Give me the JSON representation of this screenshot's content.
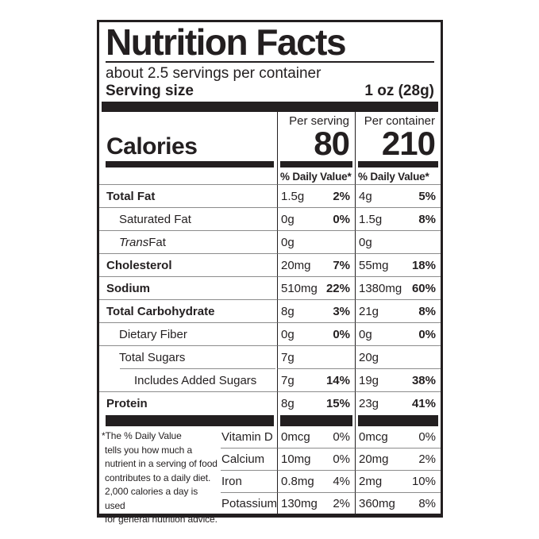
{
  "colors": {
    "ink": "#231f20",
    "hairline": "#8c8c8c",
    "background": "#ffffff"
  },
  "header": {
    "title": "Nutrition Facts",
    "servings_per_container": "about 2.5 servings per container",
    "serving_size_label": "Serving size",
    "serving_size_value": "1 oz (28g)"
  },
  "calories": {
    "label": "Calories",
    "serving_column_header": "Per serving",
    "container_column_header": "Per container",
    "per_serving": "80",
    "per_container": "210",
    "daily_value_header_serving": "% Daily Value*",
    "daily_value_header_container": "% Daily Value*"
  },
  "nutrients": [
    {
      "label": "Total Fat",
      "serving_amount": "1.5g",
      "serving_dv": "2%",
      "container_amount": "4g",
      "container_dv": "5%"
    },
    {
      "label": "Saturated Fat",
      "serving_amount": "0g",
      "serving_dv": "0%",
      "container_amount": "1.5g",
      "container_dv": "8%"
    },
    {
      "label_italic": "Trans",
      "label_rest": " Fat",
      "serving_amount": "0g",
      "serving_dv": "",
      "container_amount": "0g",
      "container_dv": ""
    },
    {
      "label": "Cholesterol",
      "serving_amount": "20mg",
      "serving_dv": "7%",
      "container_amount": "55mg",
      "container_dv": "18%"
    },
    {
      "label": "Sodium",
      "serving_amount": "510mg",
      "serving_dv": "22%",
      "container_amount": "1380mg",
      "container_dv": "60%"
    },
    {
      "label": "Total Carbohydrate",
      "serving_amount": "8g",
      "serving_dv": "3%",
      "container_amount": "21g",
      "container_dv": "8%"
    },
    {
      "label": "Dietary Fiber",
      "serving_amount": "0g",
      "serving_dv": "0%",
      "container_amount": "0g",
      "container_dv": "0%"
    },
    {
      "label": "Total Sugars",
      "serving_amount": "7g",
      "serving_dv": "",
      "container_amount": "20g",
      "container_dv": ""
    },
    {
      "label": "Includes Added Sugars",
      "serving_amount": "7g",
      "serving_dv": "14%",
      "container_amount": "19g",
      "container_dv": "38%"
    },
    {
      "label": "Protein",
      "serving_amount": "8g",
      "serving_dv": "15%",
      "container_amount": "23g",
      "container_dv": "41%"
    }
  ],
  "vitamins": [
    {
      "label": "Vitamin D",
      "serving_amount": "0mcg",
      "serving_dv": "0%",
      "container_amount": "0mcg",
      "container_dv": "0%"
    },
    {
      "label": "Calcium",
      "serving_amount": "10mg",
      "serving_dv": "0%",
      "container_amount": "20mg",
      "container_dv": "2%"
    },
    {
      "label": "Iron",
      "serving_amount": "0.8mg",
      "serving_dv": "4%",
      "container_amount": "2mg",
      "container_dv": "10%"
    },
    {
      "label": "Potassium",
      "serving_amount": "130mg",
      "serving_dv": "2%",
      "container_amount": "360mg",
      "container_dv": "8%"
    }
  ],
  "footnote": {
    "lines": [
      "*The % Daily Value",
      "tells you how much a",
      "nutrient in a serving of food",
      "contributes to a daily diet.",
      "2,000 calories a day is used",
      "for general nutrition advice."
    ]
  }
}
